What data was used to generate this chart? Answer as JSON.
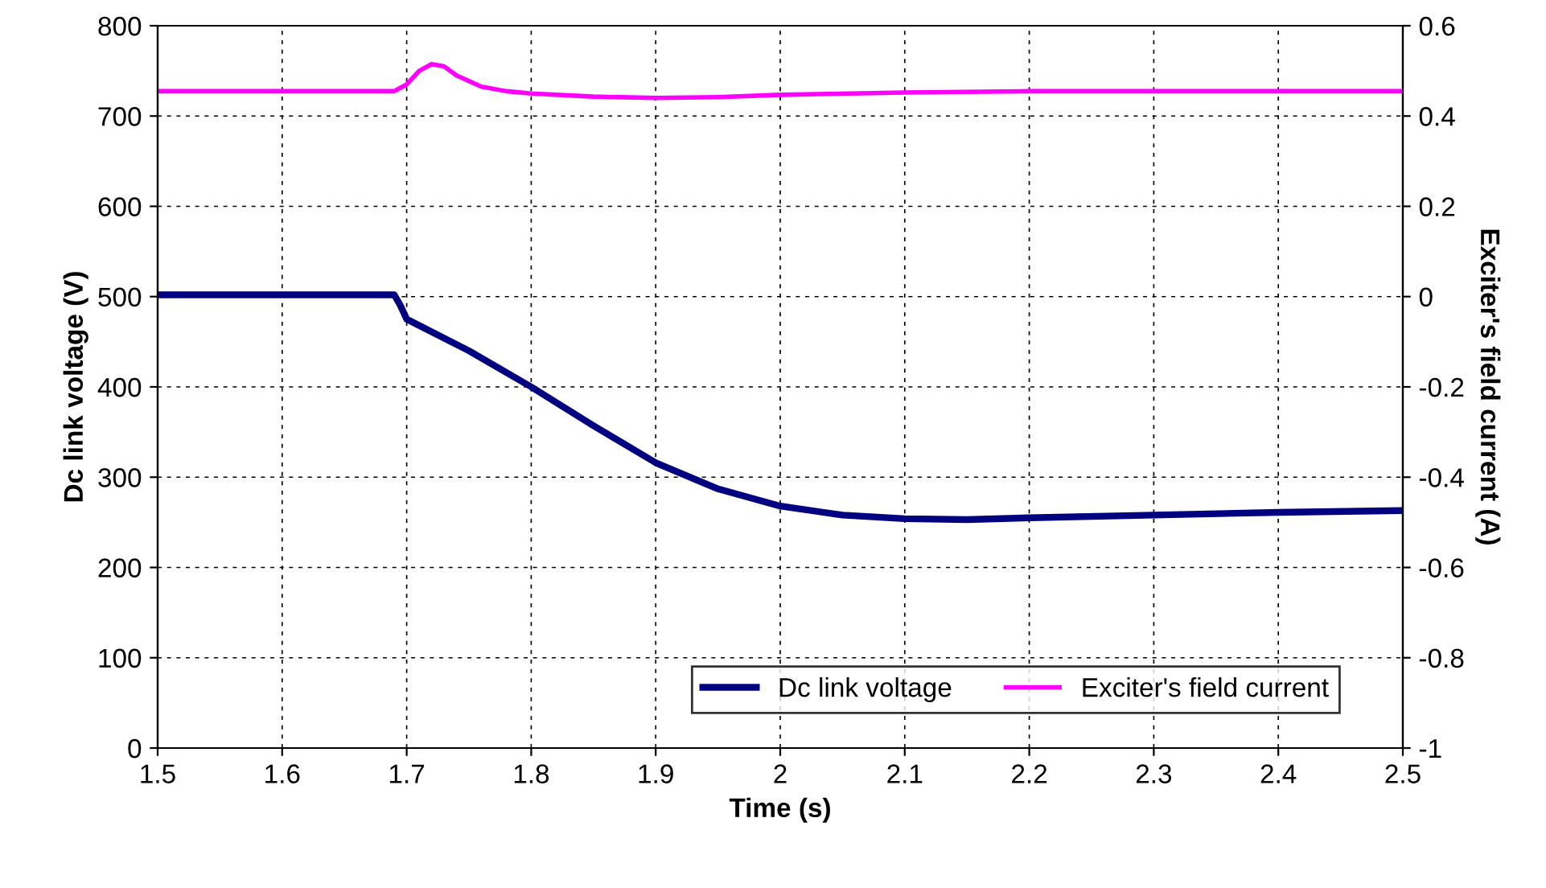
{
  "chart_data": {
    "type": "line",
    "xlabel": "Time (s)",
    "ylabel": "Dc link voltage (V)",
    "y2label": "Exciter's field current (A)",
    "xlim": [
      1.5,
      2.5
    ],
    "xticks": [
      1.5,
      1.6,
      1.7,
      1.8,
      1.9,
      2,
      2.1,
      2.2,
      2.3,
      2.4,
      2.5
    ],
    "ylim": [
      0,
      800
    ],
    "yticks": [
      0,
      100,
      200,
      300,
      400,
      500,
      600,
      700,
      800
    ],
    "y2lim": [
      -1,
      0.6
    ],
    "y2ticks": [
      -1,
      -0.8,
      -0.6,
      -0.4,
      -0.2,
      0,
      0.2,
      0.4,
      0.6
    ],
    "grid": true,
    "legend": "bottom right",
    "line_style": "solid",
    "marker": "none",
    "series": [
      {
        "name": "Dc link voltage",
        "color": "#000080",
        "x": [
          1.5,
          1.6,
          1.69,
          1.695,
          1.7,
          1.75,
          1.8,
          1.85,
          1.9,
          1.95,
          2.0,
          2.05,
          2.1,
          2.15,
          2.2,
          2.3,
          2.4,
          2.5
        ],
        "values": [
          502,
          502,
          502,
          490,
          475,
          440,
          400,
          357,
          316,
          287,
          268,
          258,
          254,
          253,
          255,
          258,
          261,
          263
        ]
      },
      {
        "name": "Exciter's field current",
        "color": "#ff00ff",
        "axis": "y2",
        "x": [
          1.5,
          1.6,
          1.69,
          1.7,
          1.71,
          1.72,
          1.73,
          1.74,
          1.76,
          1.78,
          1.8,
          1.85,
          1.9,
          1.95,
          2.0,
          2.1,
          2.2,
          2.3,
          2.4,
          2.5
        ],
        "values": [
          0.455,
          0.455,
          0.455,
          0.47,
          0.5,
          0.515,
          0.51,
          0.49,
          0.465,
          0.455,
          0.45,
          0.443,
          0.44,
          0.442,
          0.447,
          0.452,
          0.455,
          0.455,
          0.455,
          0.455
        ]
      }
    ]
  }
}
